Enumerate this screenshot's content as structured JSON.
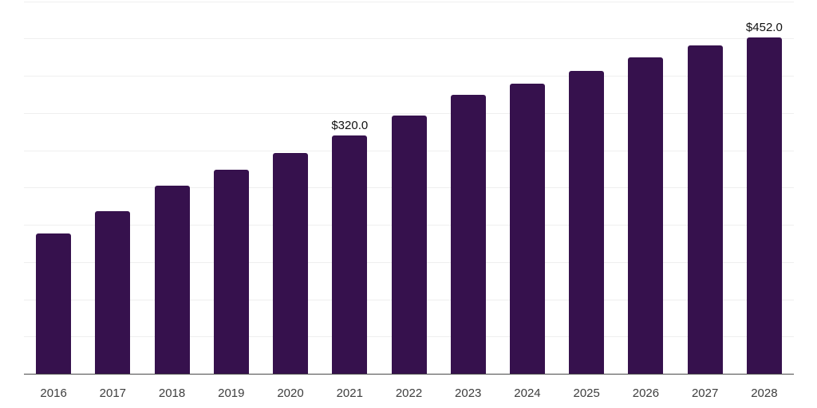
{
  "chart_data": {
    "type": "bar",
    "title": "",
    "xlabel": "",
    "ylabel": "",
    "categories": [
      "2016",
      "2017",
      "2018",
      "2019",
      "2020",
      "2021",
      "2022",
      "2023",
      "2024",
      "2025",
      "2026",
      "2027",
      "2028"
    ],
    "series": [
      {
        "name": "value",
        "values": [
          188,
          218,
          252,
          274,
          296,
          320,
          347,
          374,
          390,
          407,
          425,
          441,
          452
        ]
      }
    ],
    "data_labels": {
      "2021": "$320.0",
      "2028": "$452.0"
    },
    "ylim": [
      0,
      500
    ],
    "grid": true,
    "grid_step": 50,
    "legend": false,
    "colors": {
      "bar": "#36114d",
      "gridline": "#efefef",
      "axis_line": "#4a4a4a",
      "tick_text": "#3d3d3d",
      "data_label_text": "#111111",
      "background": "#ffffff"
    }
  }
}
